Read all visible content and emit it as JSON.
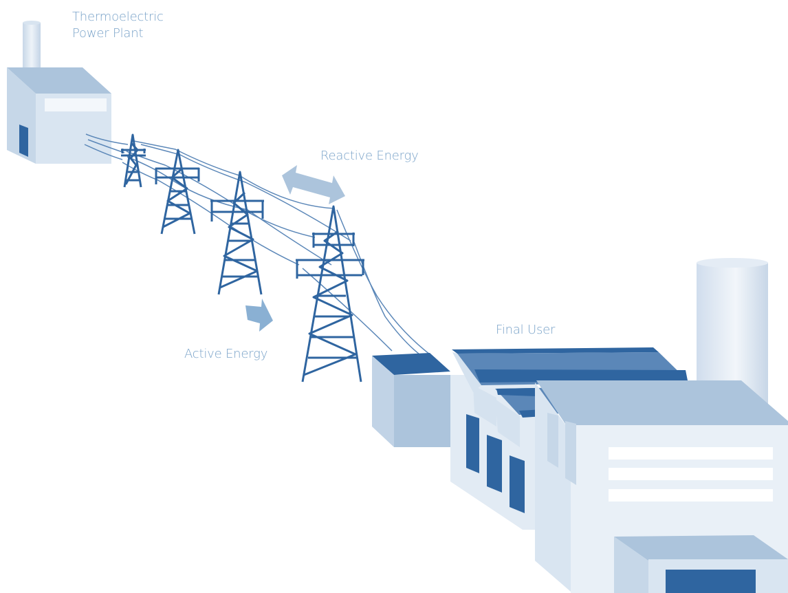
{
  "labels": {
    "plant_line1": "Thermoelectric",
    "plant_line2": "Power Plant",
    "reactive": "Reactive Energy",
    "active": "Active Energy",
    "final_user": "Final User"
  },
  "colors": {
    "dark_blue": "#2f65a0",
    "mid_blue": "#5b87b8",
    "light_blue": "#acc4dc",
    "pale_blue": "#d3e1ee",
    "very_pale": "#e9f0f7",
    "label_text": "#7aa3c9"
  },
  "icons": [
    "chimney",
    "power-plant-building",
    "transmission-tower",
    "double-arrow",
    "right-arrow",
    "transformer-box",
    "factory-building",
    "silo"
  ]
}
